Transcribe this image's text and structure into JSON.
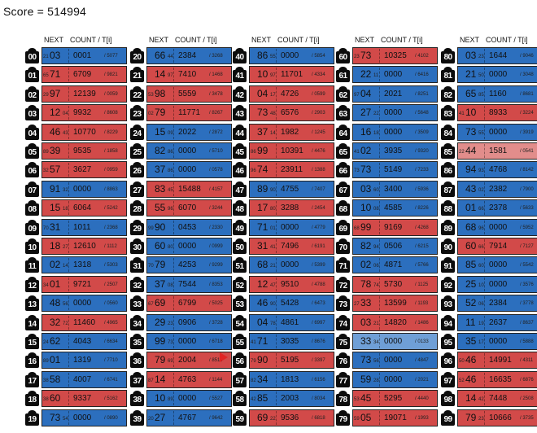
{
  "score_text": "Score = 514994",
  "headers": {
    "next": "NEXT",
    "count": "COUNT / T[i]"
  },
  "colors": {
    "blue": "#2c6fbe",
    "red": "#d24a49",
    "light_blue": "#6f9fd6",
    "light_red": "#e28d8b",
    "marker": "#e02424"
  },
  "marker_row": "56",
  "columns": [
    {
      "rows": [
        {
          "id": "00",
          "pre": "21",
          "next": "03",
          "suf": "",
          "count": "0001",
          "t": "/ 5077",
          "color": "blue"
        },
        {
          "id": "01",
          "pre": "65",
          "next": "71",
          "suf": "",
          "count": "6709",
          "t": "/ 9821",
          "color": "red"
        },
        {
          "id": "02",
          "pre": "29",
          "next": "97",
          "suf": "",
          "count": "12139",
          "t": "/ 0059",
          "color": "red"
        },
        {
          "id": "03",
          "pre": "",
          "next": "12",
          "suf": "04",
          "count": "9932",
          "t": "/ 8608",
          "color": "red"
        },
        {
          "id": "04",
          "pre": "",
          "next": "46",
          "suf": "43",
          "count": "10770",
          "t": "/ 8229",
          "color": "red"
        },
        {
          "id": "05",
          "pre": "89",
          "next": "39",
          "suf": "",
          "count": "9535",
          "t": "/ 1858",
          "color": "red"
        },
        {
          "id": "06",
          "pre": "32",
          "next": "57",
          "suf": "",
          "count": "3627",
          "t": "/ 0959",
          "color": "red"
        },
        {
          "id": "07",
          "pre": "",
          "next": "91",
          "suf": "32",
          "count": "0000",
          "t": "/ 8863",
          "color": "blue"
        },
        {
          "id": "08",
          "pre": "",
          "next": "15",
          "suf": "18",
          "count": "6064",
          "t": "/ 5242",
          "color": "red"
        },
        {
          "id": "09",
          "pre": "70",
          "next": "31",
          "suf": "",
          "count": "1011",
          "t": "/ 2368",
          "color": "blue"
        },
        {
          "id": "10",
          "pre": "",
          "next": "18",
          "suf": "27",
          "count": "12610",
          "t": "/ 1112",
          "color": "red"
        },
        {
          "id": "11",
          "pre": "",
          "next": "02",
          "suf": "14",
          "count": "1318",
          "t": "/ 5303",
          "color": "blue"
        },
        {
          "id": "12",
          "pre": "34",
          "next": "01",
          "suf": "",
          "count": "9721",
          "t": "/ 2507",
          "color": "red"
        },
        {
          "id": "13",
          "pre": "",
          "next": "48",
          "suf": "56",
          "count": "0000",
          "t": "/ 0560",
          "color": "blue"
        },
        {
          "id": "14",
          "pre": "",
          "next": "32",
          "suf": "72",
          "count": "11460",
          "t": "/ 4965",
          "color": "red"
        },
        {
          "id": "15",
          "pre": "24",
          "next": "62",
          "suf": "",
          "count": "4043",
          "t": "/ 6634",
          "color": "blue"
        },
        {
          "id": "16",
          "pre": "89",
          "next": "01",
          "suf": "",
          "count": "1319",
          "t": "/ 7710",
          "color": "blue"
        },
        {
          "id": "17",
          "pre": "38",
          "next": "58",
          "suf": "",
          "count": "4007",
          "t": "/ 6741",
          "color": "blue"
        },
        {
          "id": "18",
          "pre": "38",
          "next": "60",
          "suf": "",
          "count": "9337",
          "t": "/ 5162",
          "color": "red"
        },
        {
          "id": "19",
          "pre": "",
          "next": "73",
          "suf": "54",
          "count": "0000",
          "t": "/ 0890",
          "color": "blue"
        }
      ]
    },
    {
      "rows": [
        {
          "id": "20",
          "pre": "",
          "next": "66",
          "suf": "44",
          "count": "2384",
          "t": "/ 3268",
          "color": "blue"
        },
        {
          "id": "21",
          "pre": "",
          "next": "14",
          "suf": "97",
          "count": "7410",
          "t": "/ 1468",
          "color": "red"
        },
        {
          "id": "22",
          "pre": "53",
          "next": "98",
          "suf": "",
          "count": "5559",
          "t": "/ 3478",
          "color": "red"
        },
        {
          "id": "23",
          "pre": "02",
          "next": "79",
          "suf": "",
          "count": "11771",
          "t": "/ 8267",
          "color": "red"
        },
        {
          "id": "24",
          "pre": "",
          "next": "15",
          "suf": "09",
          "count": "2022",
          "t": "/ 2872",
          "color": "blue"
        },
        {
          "id": "25",
          "pre": "",
          "next": "82",
          "suf": "86",
          "count": "0000",
          "t": "/ 5710",
          "color": "blue"
        },
        {
          "id": "26",
          "pre": "",
          "next": "37",
          "suf": "86",
          "count": "0000",
          "t": "/ 0578",
          "color": "blue"
        },
        {
          "id": "27",
          "pre": "",
          "next": "83",
          "suf": "45",
          "count": "15488",
          "t": "/ 4157",
          "color": "red"
        },
        {
          "id": "28",
          "pre": "",
          "next": "55",
          "suf": "96",
          "count": "6070",
          "t": "/ 3244",
          "color": "red"
        },
        {
          "id": "29",
          "pre": "99",
          "next": "90",
          "suf": "",
          "count": "0453",
          "t": "/ 2330",
          "color": "blue"
        },
        {
          "id": "30",
          "pre": "",
          "next": "60",
          "suf": "80",
          "count": "0000",
          "t": "/ 0999",
          "color": "blue"
        },
        {
          "id": "31",
          "pre": "70",
          "next": "79",
          "suf": "",
          "count": "4253",
          "t": "/ 9299",
          "color": "blue"
        },
        {
          "id": "32",
          "pre": "",
          "next": "37",
          "suf": "08",
          "count": "7544",
          "t": "/ 8353",
          "color": "blue"
        },
        {
          "id": "33",
          "pre": "67",
          "next": "69",
          "suf": "",
          "count": "6799",
          "t": "/ 5025",
          "color": "red"
        },
        {
          "id": "34",
          "pre": "",
          "next": "29",
          "suf": "23",
          "count": "0906",
          "t": "/ 3728",
          "color": "blue"
        },
        {
          "id": "35",
          "pre": "",
          "next": "99",
          "suf": "73",
          "count": "0000",
          "t": "/ 6718",
          "color": "blue"
        },
        {
          "id": "36",
          "pre": "",
          "next": "79",
          "suf": "69",
          "count": "2004",
          "t": "/ 8511",
          "color": "red"
        },
        {
          "id": "37",
          "pre": "87",
          "next": "14",
          "suf": "",
          "count": "4763",
          "t": "/ 1144",
          "color": "red"
        },
        {
          "id": "38",
          "pre": "",
          "next": "10",
          "suf": "89",
          "count": "0000",
          "t": "/ 5527",
          "color": "blue"
        },
        {
          "id": "39",
          "pre": "20",
          "next": "27",
          "suf": "",
          "count": "4767",
          "t": "/ 9642",
          "color": "blue"
        }
      ]
    },
    {
      "rows": [
        {
          "id": "40",
          "pre": "",
          "next": "86",
          "suf": "55",
          "count": "0000",
          "t": "/ 5854",
          "color": "blue"
        },
        {
          "id": "41",
          "pre": "",
          "next": "10",
          "suf": "97",
          "count": "11701",
          "t": "/ 4334",
          "color": "red"
        },
        {
          "id": "42",
          "pre": "",
          "next": "04",
          "suf": "17",
          "count": "4726",
          "t": "/ 0599",
          "color": "red"
        },
        {
          "id": "43",
          "pre": "",
          "next": "73",
          "suf": "48",
          "count": "6576",
          "t": "/ 2903",
          "color": "red"
        },
        {
          "id": "44",
          "pre": "",
          "next": "37",
          "suf": "14",
          "count": "1982",
          "t": "/ 1245",
          "color": "red"
        },
        {
          "id": "45",
          "pre": "86",
          "next": "99",
          "suf": "",
          "count": "10391",
          "t": "/ 4476",
          "color": "red"
        },
        {
          "id": "46",
          "pre": "96",
          "next": "74",
          "suf": "",
          "count": "23911",
          "t": "/ 1388",
          "color": "red"
        },
        {
          "id": "47",
          "pre": "",
          "next": "89",
          "suf": "90",
          "count": "4755",
          "t": "/ 7407",
          "color": "blue"
        },
        {
          "id": "48",
          "pre": "",
          "next": "17",
          "suf": "80",
          "count": "3288",
          "t": "/ 2454",
          "color": "red"
        },
        {
          "id": "49",
          "pre": "",
          "next": "71",
          "suf": "01",
          "count": "0000",
          "t": "/ 4779",
          "color": "blue"
        },
        {
          "id": "50",
          "pre": "",
          "next": "31",
          "suf": "41",
          "count": "7496",
          "t": "/ 6191",
          "color": "red"
        },
        {
          "id": "51",
          "pre": "",
          "next": "68",
          "suf": "21",
          "count": "0000",
          "t": "/ 5399",
          "color": "blue"
        },
        {
          "id": "52",
          "pre": "",
          "next": "12",
          "suf": "47",
          "count": "9510",
          "t": "/ 4788",
          "color": "red"
        },
        {
          "id": "53",
          "pre": "",
          "next": "46",
          "suf": "90",
          "count": "5428",
          "t": "/ 6473",
          "color": "blue"
        },
        {
          "id": "54",
          "pre": "",
          "next": "04",
          "suf": "78",
          "count": "4861",
          "t": "/ 6997",
          "color": "blue"
        },
        {
          "id": "55",
          "pre": "41",
          "next": "71",
          "suf": "",
          "count": "3035",
          "t": "/ 8676",
          "color": "blue"
        },
        {
          "id": "56",
          "pre": "79",
          "next": "90",
          "suf": "",
          "count": "5195",
          "t": "/ 3397",
          "color": "red"
        },
        {
          "id": "57",
          "pre": "82",
          "next": "34",
          "suf": "",
          "count": "1813",
          "t": "/ 6156",
          "color": "blue"
        },
        {
          "id": "58",
          "pre": "42",
          "next": "85",
          "suf": "",
          "count": "2003",
          "t": "/ 8034",
          "color": "blue"
        },
        {
          "id": "59",
          "pre": "",
          "next": "69",
          "suf": "22",
          "count": "9536",
          "t": "/ 6818",
          "color": "red"
        }
      ]
    },
    {
      "rows": [
        {
          "id": "60",
          "pre": "23",
          "next": "73",
          "suf": "",
          "count": "10325",
          "t": "/ 4102",
          "color": "red"
        },
        {
          "id": "61",
          "pre": "",
          "next": "22",
          "suf": "11",
          "count": "0000",
          "t": "/ 6416",
          "color": "blue"
        },
        {
          "id": "62",
          "pre": "97",
          "next": "04",
          "suf": "",
          "count": "2021",
          "t": "/ 8251",
          "color": "blue"
        },
        {
          "id": "63",
          "pre": "",
          "next": "27",
          "suf": "22",
          "count": "0000",
          "t": "/ 5648",
          "color": "blue"
        },
        {
          "id": "64",
          "pre": "",
          "next": "16",
          "suf": "18",
          "count": "0000",
          "t": "/ 3509",
          "color": "blue"
        },
        {
          "id": "65",
          "pre": "41",
          "next": "02",
          "suf": "",
          "count": "3935",
          "t": "/ 9320",
          "color": "blue"
        },
        {
          "id": "66",
          "pre": "73",
          "next": "73",
          "suf": "",
          "count": "5149",
          "t": "/ 7233",
          "color": "blue"
        },
        {
          "id": "67",
          "pre": "",
          "next": "03",
          "suf": "60",
          "count": "3400",
          "t": "/ 5936",
          "color": "blue"
        },
        {
          "id": "68",
          "pre": "",
          "next": "10",
          "suf": "08",
          "count": "4585",
          "t": "/ 8226",
          "color": "blue"
        },
        {
          "id": "69",
          "pre": "68",
          "next": "99",
          "suf": "",
          "count": "9169",
          "t": "/ 4268",
          "color": "red"
        },
        {
          "id": "70",
          "pre": "",
          "next": "82",
          "suf": "94",
          "count": "0506",
          "t": "/ 6215",
          "color": "blue"
        },
        {
          "id": "71",
          "pre": "",
          "next": "02",
          "suf": "06",
          "count": "4871",
          "t": "/ 5766",
          "color": "blue"
        },
        {
          "id": "72",
          "pre": "",
          "next": "78",
          "suf": "74",
          "count": "5730",
          "t": "/ 1125",
          "color": "red"
        },
        {
          "id": "73",
          "pre": "27",
          "next": "33",
          "suf": "",
          "count": "13599",
          "t": "/ 1193",
          "color": "red"
        },
        {
          "id": "74",
          "pre": "",
          "next": "03",
          "suf": "21",
          "count": "14820",
          "t": "/ 1486",
          "color": "red"
        },
        {
          "id": "75",
          "pre": "",
          "next": "33",
          "suf": "34",
          "count": "0000",
          "t": "/ 0133",
          "color": "lblue"
        },
        {
          "id": "76",
          "pre": "",
          "next": "73",
          "suf": "56",
          "count": "0000",
          "t": "/ 4847",
          "color": "blue"
        },
        {
          "id": "77",
          "pre": "",
          "next": "59",
          "suf": "28",
          "count": "0000",
          "t": "/ 2021",
          "color": "blue"
        },
        {
          "id": "78",
          "pre": "53",
          "next": "45",
          "suf": "",
          "count": "5295",
          "t": "/ 4440",
          "color": "red"
        },
        {
          "id": "79",
          "pre": "59",
          "next": "05",
          "suf": "",
          "count": "19071",
          "t": "/ 1993",
          "color": "red"
        }
      ]
    },
    {
      "rows": [
        {
          "id": "80",
          "pre": "",
          "next": "03",
          "suf": "23",
          "count": "1644",
          "t": "/ 9046",
          "color": "blue"
        },
        {
          "id": "81",
          "pre": "",
          "next": "21",
          "suf": "50",
          "count": "0000",
          "t": "/ 3048",
          "color": "blue"
        },
        {
          "id": "82",
          "pre": "",
          "next": "65",
          "suf": "85",
          "count": "1160",
          "t": "/ 8681",
          "color": "blue"
        },
        {
          "id": "83",
          "pre": "41",
          "next": "10",
          "suf": "",
          "count": "8933",
          "t": "/ 3224",
          "color": "red"
        },
        {
          "id": "84",
          "pre": "",
          "next": "73",
          "suf": "55",
          "count": "0000",
          "t": "/ 3919",
          "color": "blue"
        },
        {
          "id": "85",
          "pre": "22",
          "next": "44",
          "suf": "",
          "count": "1581",
          "t": "/ 0541",
          "color": "lred"
        },
        {
          "id": "86",
          "pre": "",
          "next": "94",
          "suf": "93",
          "count": "4768",
          "t": "/ 8142",
          "color": "blue"
        },
        {
          "id": "87",
          "pre": "",
          "next": "43",
          "suf": "02",
          "count": "2382",
          "t": "/ 7900",
          "color": "blue"
        },
        {
          "id": "88",
          "pre": "",
          "next": "01",
          "suf": "66",
          "count": "2378",
          "t": "/ 5633",
          "color": "blue"
        },
        {
          "id": "89",
          "pre": "",
          "next": "68",
          "suf": "96",
          "count": "0000",
          "t": "/ 5952",
          "color": "blue"
        },
        {
          "id": "90",
          "pre": "",
          "next": "60",
          "suf": "66",
          "count": "7914",
          "t": "/ 7127",
          "color": "red"
        },
        {
          "id": "91",
          "pre": "",
          "next": "85",
          "suf": "60",
          "count": "0000",
          "t": "/ 5542",
          "color": "blue"
        },
        {
          "id": "92",
          "pre": "",
          "next": "25",
          "suf": "10",
          "count": "0000",
          "t": "/ 3576",
          "color": "blue"
        },
        {
          "id": "93",
          "pre": "",
          "next": "52",
          "suf": "06",
          "count": "2384",
          "t": "/ 3778",
          "color": "blue"
        },
        {
          "id": "94",
          "pre": "",
          "next": "11",
          "suf": "19",
          "count": "2637",
          "t": "/ 8637",
          "color": "blue"
        },
        {
          "id": "95",
          "pre": "",
          "next": "35",
          "suf": "17",
          "count": "0000",
          "t": "/ 5888",
          "color": "blue"
        },
        {
          "id": "96",
          "pre": "50",
          "next": "46",
          "suf": "",
          "count": "14991",
          "t": "/ 4311",
          "color": "red"
        },
        {
          "id": "97",
          "pre": "52",
          "next": "46",
          "suf": "",
          "count": "16635",
          "t": "/ 6876",
          "color": "red"
        },
        {
          "id": "98",
          "pre": "",
          "next": "14",
          "suf": "42",
          "count": "7448",
          "t": "/ 2508",
          "color": "red"
        },
        {
          "id": "99",
          "pre": "",
          "next": "79",
          "suf": "23",
          "count": "10666",
          "t": "/ 3735",
          "color": "red"
        }
      ]
    }
  ]
}
